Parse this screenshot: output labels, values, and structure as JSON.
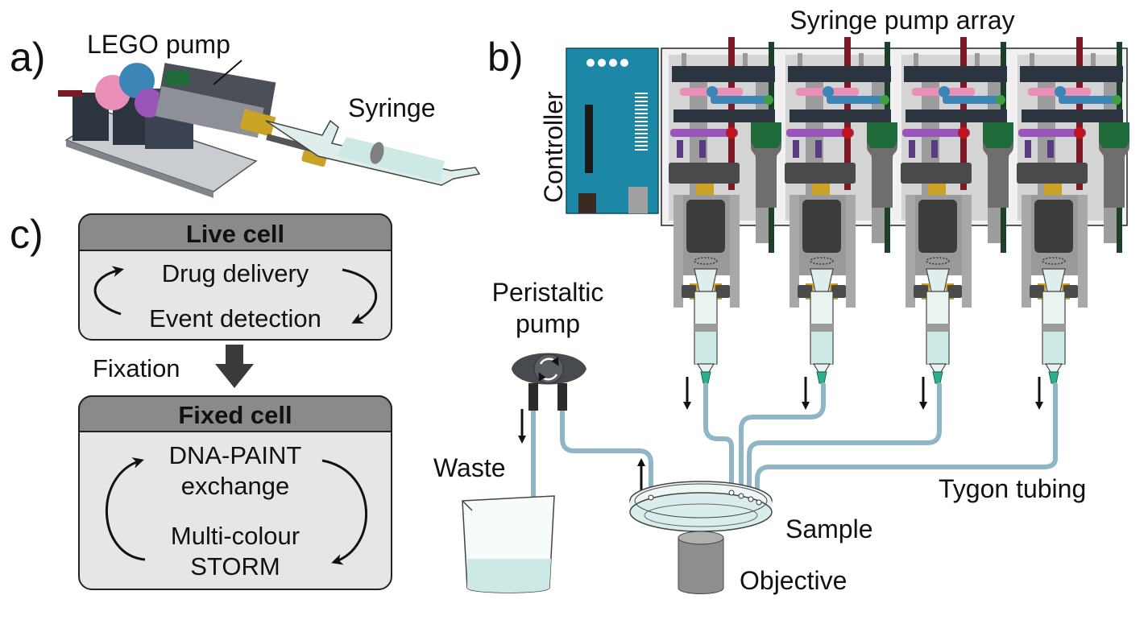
{
  "panel_a": {
    "letter": "a)",
    "pump_label": "LEGO pump",
    "syringe_label": "Syringe"
  },
  "panel_b": {
    "letter": "b)",
    "array_title": "Syringe pump array",
    "controller_label": "Controller",
    "peristaltic_line1": "Peristaltic",
    "peristaltic_line2": "pump",
    "waste_label": "Waste",
    "tubing_label": "Tygon tubing",
    "sample_label": "Sample",
    "objective_label": "Objective",
    "pump_count": 4
  },
  "panel_c": {
    "letter": "c)",
    "live_header": "Live cell",
    "live_line1": "Drug delivery",
    "live_line2": "Event detection",
    "fixation_label": "Fixation",
    "fixed_header": "Fixed cell",
    "fixed_line1": "DNA-PAINT",
    "fixed_line2": "exchange",
    "fixed_line3": "Multi-colour",
    "fixed_line4": "STORM"
  },
  "colors": {
    "controller": "#1d87a6",
    "tubing": "#8fb6c6",
    "gear_pink": "#e98fb8",
    "gear_blue": "#3b86b6",
    "gear_purple": "#9a55b8",
    "drive_green": "#1f6b3a",
    "rod_red": "#7a1a24",
    "brass": "#c9a226",
    "liquid": "#cde9e6",
    "box_header": "#8a8a8a",
    "box_body": "#e6e6e6"
  }
}
